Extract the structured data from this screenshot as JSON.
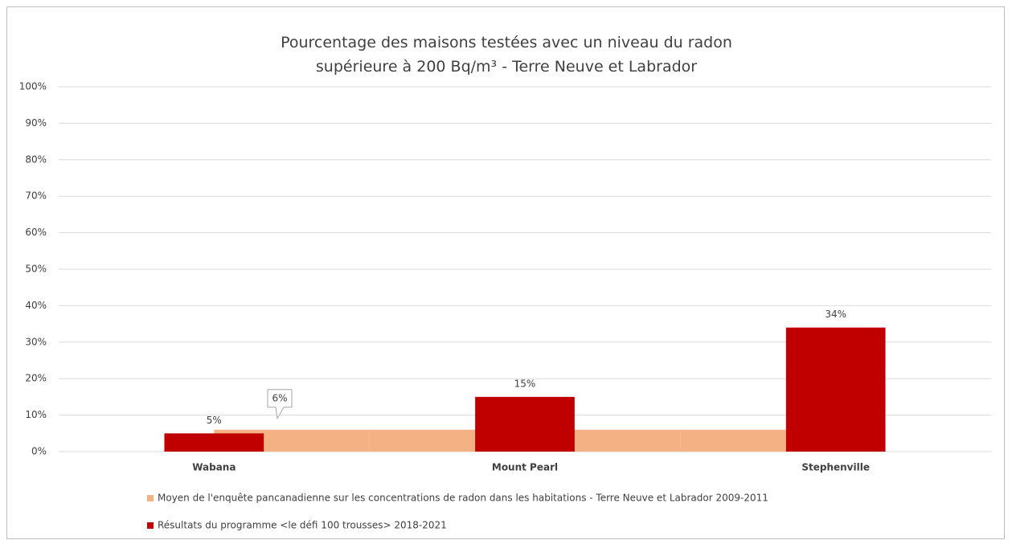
{
  "chart_data": {
    "type": "bar",
    "title": "Pourcentage des maisons testées avec un niveau du radon supérieure à 200 Bq/m³ - Terre Neuve et Labrador",
    "categories": [
      "Wabana",
      "Mount Pearl",
      "Stephenville"
    ],
    "series": [
      {
        "name": "Moyen de l'enquête pancanadienne sur les concentrations de radon dans les habitations - Terre Neuve et Labrador 2009-2011",
        "color": "#f4b183",
        "values": [
          6,
          6,
          6
        ],
        "value_labels": [
          "6%",
          null,
          null
        ]
      },
      {
        "name": "Résultats du programme <le défi 100 trousses> 2018-2021",
        "color": "#c00000",
        "values": [
          5,
          15,
          34
        ],
        "value_labels": [
          "5%",
          "15%",
          "34%"
        ]
      }
    ],
    "ylim": [
      0,
      100
    ],
    "yticks": [
      {
        "value": 0,
        "label": "0%"
      },
      {
        "value": 10,
        "label": "10%"
      },
      {
        "value": 20,
        "label": "20%"
      },
      {
        "value": 30,
        "label": "30%"
      },
      {
        "value": 40,
        "label": "40%"
      },
      {
        "value": 50,
        "label": "50%"
      },
      {
        "value": 60,
        "label": "60%"
      },
      {
        "value": 70,
        "label": "70%"
      },
      {
        "value": 80,
        "label": "80%"
      },
      {
        "value": 90,
        "label": "90%"
      },
      {
        "value": 100,
        "label": "100%"
      }
    ],
    "grid": true
  }
}
